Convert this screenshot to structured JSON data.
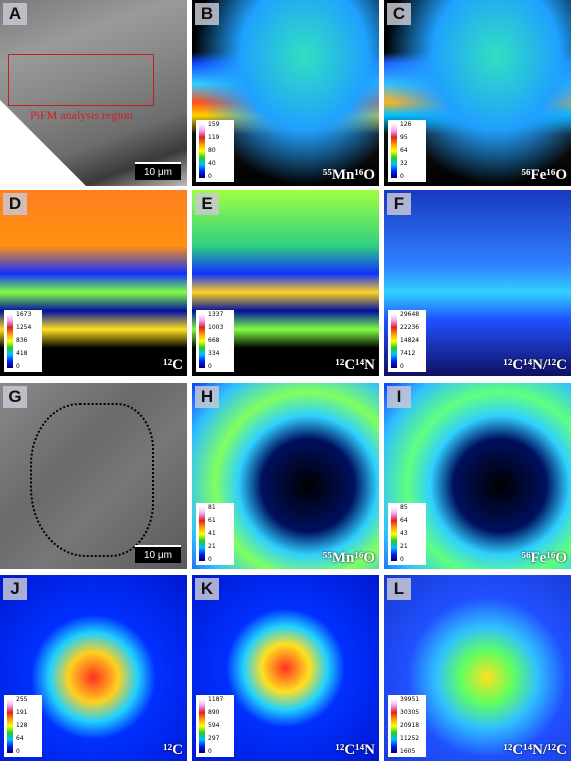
{
  "panels": [
    {
      "letter": "A",
      "annotation": "PiFM analysis region",
      "scale_bar": "10 μm"
    },
    {
      "letter": "B",
      "label": "⁵⁵Mn¹⁶O",
      "colorbar": [
        159,
        119,
        80,
        40,
        0
      ]
    },
    {
      "letter": "C",
      "label": "⁵⁶Fe¹⁶O",
      "colorbar": [
        126,
        95,
        64,
        32,
        0
      ]
    },
    {
      "letter": "D",
      "label": "¹²C",
      "colorbar": [
        1673,
        1254,
        836,
        418,
        0
      ]
    },
    {
      "letter": "E",
      "label": "¹²C¹⁴N",
      "colorbar": [
        1337,
        1003,
        668,
        334,
        0
      ]
    },
    {
      "letter": "F",
      "label": "¹²C¹⁴N/¹²C",
      "colorbar": [
        29648,
        22236,
        14824,
        7412,
        0
      ]
    },
    {
      "letter": "G",
      "scale_bar": "10 μm"
    },
    {
      "letter": "H",
      "label": "⁵⁵Mn¹⁶O",
      "colorbar": [
        81,
        61,
        41,
        21,
        0
      ]
    },
    {
      "letter": "I",
      "label": "⁵⁶Fe¹⁶O",
      "colorbar": [
        85,
        64,
        43,
        21,
        0
      ]
    },
    {
      "letter": "J",
      "label": "¹²C",
      "colorbar": [
        255,
        191,
        128,
        64,
        0
      ]
    },
    {
      "letter": "K",
      "label": "¹²C¹⁴N",
      "colorbar": [
        1187,
        890,
        594,
        297,
        0
      ]
    },
    {
      "letter": "L",
      "label": "¹²C¹⁴N/¹²C",
      "colorbar": [
        39951,
        30305,
        20918,
        11252,
        1605
      ]
    }
  ]
}
